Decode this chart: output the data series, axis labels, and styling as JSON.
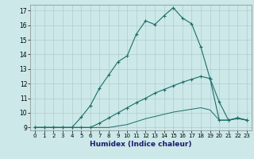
{
  "xlabel": "Humidex (Indice chaleur)",
  "bg_color": "#cce8e8",
  "grid_color": "#b0cccc",
  "line_color": "#1a6e6a",
  "xlim": [
    -0.5,
    23.5
  ],
  "ylim": [
    8.8,
    17.4
  ],
  "yticks": [
    9,
    10,
    11,
    12,
    13,
    14,
    15,
    16,
    17
  ],
  "xticks": [
    0,
    1,
    2,
    3,
    4,
    5,
    6,
    7,
    8,
    9,
    10,
    11,
    12,
    13,
    14,
    15,
    16,
    17,
    18,
    19,
    20,
    21,
    22,
    23
  ],
  "series1_x": [
    0,
    1,
    2,
    3,
    4,
    5,
    6,
    7,
    8,
    9,
    10,
    11,
    12,
    13,
    14,
    15,
    16,
    17,
    18,
    19,
    20,
    21,
    22,
    23
  ],
  "series1_y": [
    9,
    9,
    9,
    9,
    9,
    9.7,
    10.5,
    11.7,
    12.6,
    13.5,
    13.9,
    15.4,
    16.3,
    16.05,
    16.65,
    17.2,
    16.5,
    16.1,
    14.5,
    12.35,
    10.75,
    9.5,
    9.65,
    9.5
  ],
  "series2_x": [
    0,
    1,
    2,
    3,
    4,
    5,
    6,
    7,
    8,
    9,
    10,
    11,
    12,
    13,
    14,
    15,
    16,
    17,
    18,
    19,
    20,
    21,
    22,
    23
  ],
  "series2_y": [
    9,
    9,
    9,
    9,
    9,
    9,
    9,
    9.3,
    9.65,
    10.0,
    10.35,
    10.7,
    11.0,
    11.35,
    11.6,
    11.85,
    12.1,
    12.3,
    12.5,
    12.35,
    9.5,
    9.5,
    9.65,
    9.5
  ],
  "series3_x": [
    0,
    1,
    2,
    3,
    4,
    5,
    6,
    7,
    8,
    9,
    10,
    11,
    12,
    13,
    14,
    15,
    16,
    17,
    18,
    19,
    20,
    21,
    22,
    23
  ],
  "series3_y": [
    9,
    9,
    9,
    9,
    9,
    9,
    9,
    9,
    9,
    9.1,
    9.2,
    9.4,
    9.6,
    9.75,
    9.9,
    10.05,
    10.15,
    10.25,
    10.35,
    10.2,
    9.5,
    9.5,
    9.6,
    9.5
  ]
}
